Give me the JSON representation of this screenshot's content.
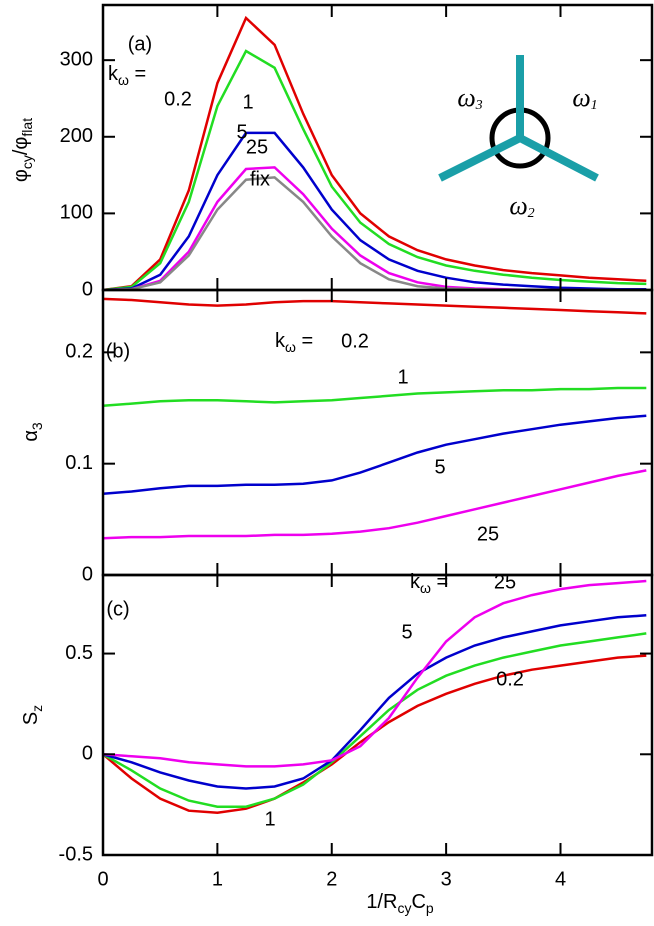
{
  "chart_data": [
    {
      "type": "line",
      "panel_label": "(a)",
      "annotation": [
        "k",
        "ω",
        " ="
      ],
      "y_label": [
        "φ",
        "cy",
        "/φ",
        "flat"
      ],
      "inset_labels": [
        [
          "ω",
          "3"
        ],
        [
          "ω",
          "1"
        ],
        [
          "ω",
          "2"
        ]
      ],
      "x": [
        0,
        0.25,
        0.5,
        0.75,
        1,
        1.25,
        1.5,
        1.75,
        2,
        2.25,
        2.5,
        2.75,
        3,
        3.25,
        3.5,
        3.75,
        4,
        4.25,
        4.5,
        4.75
      ],
      "xlim": [
        0,
        4.8
      ],
      "ylim": [
        0,
        372
      ],
      "yticks": [
        0,
        100,
        200,
        300
      ],
      "series": [
        {
          "name": "0.2",
          "color": "#e00000",
          "values": [
            0,
            5,
            40,
            130,
            270,
            355,
            320,
            230,
            150,
            100,
            70,
            52,
            40,
            32,
            26,
            22,
            19,
            16,
            14,
            12
          ]
        },
        {
          "name": "1",
          "color": "#22dd22",
          "values": [
            0,
            4,
            35,
            115,
            240,
            312,
            290,
            210,
            135,
            88,
            60,
            43,
            32,
            25,
            20,
            16,
            13,
            11,
            9,
            8
          ]
        },
        {
          "name": "5",
          "color": "#0000cc",
          "values": [
            0,
            2,
            20,
            70,
            150,
            205,
            205,
            160,
            105,
            65,
            40,
            25,
            16,
            10,
            7,
            5,
            3,
            2,
            1,
            1
          ]
        },
        {
          "name": "25",
          "color": "#ee00ee",
          "values": [
            0,
            1,
            12,
            50,
            115,
            158,
            160,
            125,
            80,
            45,
            22,
            10,
            4,
            2,
            1,
            0,
            0,
            0,
            0,
            0
          ]
        },
        {
          "name": "fix",
          "color": "#888888",
          "values": [
            0,
            1,
            10,
            45,
            105,
            144,
            147,
            115,
            70,
            35,
            14,
            5,
            2,
            1,
            0,
            0,
            0,
            0,
            0,
            0
          ]
        }
      ]
    },
    {
      "type": "line",
      "panel_label": "(b)",
      "annotation": [
        "k",
        "ω",
        " ="
      ],
      "y_label": [
        "α",
        "3"
      ],
      "x": [
        0,
        0.25,
        0.5,
        0.75,
        1,
        1.25,
        1.5,
        1.75,
        2,
        2.25,
        2.5,
        2.75,
        3,
        3.25,
        3.5,
        3.75,
        4,
        4.25,
        4.5,
        4.75
      ],
      "xlim": [
        0,
        4.8
      ],
      "ylim": [
        0,
        0.256
      ],
      "yticks": [
        0,
        0.1,
        0.2
      ],
      "series": [
        {
          "name": "0.2",
          "color": "#e00000",
          "values": [
            0.248,
            0.247,
            0.245,
            0.243,
            0.242,
            0.243,
            0.245,
            0.246,
            0.246,
            0.245,
            0.244,
            0.243,
            0.242,
            0.241,
            0.24,
            0.239,
            0.238,
            0.237,
            0.236,
            0.235
          ]
        },
        {
          "name": "1",
          "color": "#22dd22",
          "values": [
            0.152,
            0.154,
            0.156,
            0.157,
            0.157,
            0.156,
            0.155,
            0.156,
            0.157,
            0.159,
            0.161,
            0.163,
            0.164,
            0.165,
            0.166,
            0.166,
            0.167,
            0.167,
            0.168,
            0.168
          ]
        },
        {
          "name": "5",
          "color": "#0000cc",
          "values": [
            0.073,
            0.075,
            0.078,
            0.08,
            0.08,
            0.081,
            0.081,
            0.082,
            0.085,
            0.092,
            0.101,
            0.11,
            0.117,
            0.122,
            0.127,
            0.131,
            0.135,
            0.138,
            0.141,
            0.143
          ]
        },
        {
          "name": "25",
          "color": "#ee00ee",
          "values": [
            0.033,
            0.034,
            0.034,
            0.035,
            0.035,
            0.035,
            0.036,
            0.036,
            0.037,
            0.039,
            0.042,
            0.047,
            0.053,
            0.059,
            0.065,
            0.071,
            0.077,
            0.083,
            0.089,
            0.094
          ]
        }
      ]
    },
    {
      "type": "line",
      "panel_label": "(c)",
      "annotation": [
        "k",
        "ω",
        " ="
      ],
      "y_label": [
        "S",
        "z"
      ],
      "x_label": [
        "1/R",
        "cy",
        "C",
        "p"
      ],
      "x": [
        0,
        0.25,
        0.5,
        0.75,
        1,
        1.25,
        1.5,
        1.75,
        2,
        2.25,
        2.5,
        2.75,
        3,
        3.25,
        3.5,
        3.75,
        4,
        4.25,
        4.5,
        4.75
      ],
      "xlim": [
        0,
        4.8
      ],
      "xticks": [
        0,
        1,
        2,
        3,
        4
      ],
      "ylim": [
        -0.5,
        0.89
      ],
      "yticks": [
        -0.5,
        0,
        0.5
      ],
      "series": [
        {
          "name": "0.2",
          "color": "#e00000",
          "values": [
            0,
            -0.12,
            -0.22,
            -0.28,
            -0.29,
            -0.27,
            -0.22,
            -0.14,
            -0.05,
            0.06,
            0.16,
            0.24,
            0.3,
            0.35,
            0.39,
            0.42,
            0.44,
            0.46,
            0.48,
            0.49
          ]
        },
        {
          "name": "1",
          "color": "#22dd22",
          "values": [
            0,
            -0.08,
            -0.17,
            -0.23,
            -0.26,
            -0.26,
            -0.22,
            -0.15,
            -0.04,
            0.09,
            0.22,
            0.32,
            0.39,
            0.44,
            0.48,
            0.51,
            0.54,
            0.56,
            0.58,
            0.6
          ]
        },
        {
          "name": "5",
          "color": "#0000cc",
          "values": [
            0,
            -0.04,
            -0.09,
            -0.13,
            -0.16,
            -0.17,
            -0.16,
            -0.12,
            -0.03,
            0.12,
            0.28,
            0.4,
            0.48,
            0.54,
            0.58,
            0.61,
            0.64,
            0.66,
            0.68,
            0.69
          ]
        },
        {
          "name": "25",
          "color": "#ee00ee",
          "values": [
            0,
            -0.01,
            -0.02,
            -0.04,
            -0.05,
            -0.06,
            -0.06,
            -0.05,
            -0.03,
            0.04,
            0.18,
            0.38,
            0.56,
            0.68,
            0.75,
            0.79,
            0.82,
            0.84,
            0.85,
            0.86
          ]
        }
      ]
    }
  ]
}
